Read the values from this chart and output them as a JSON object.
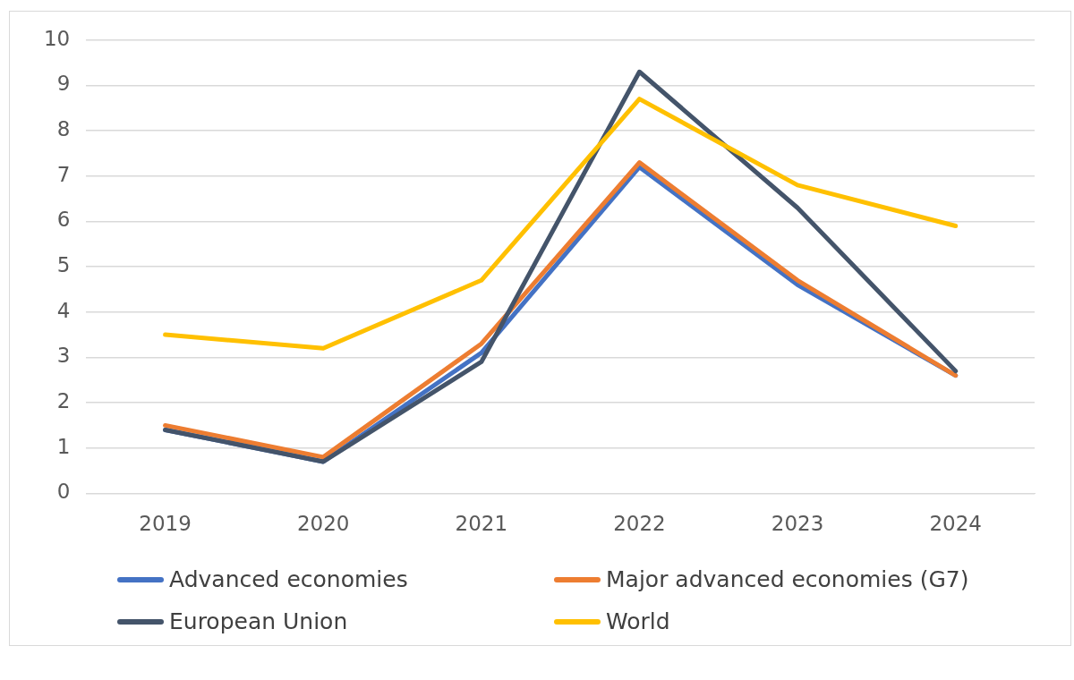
{
  "chart_data": {
    "type": "line",
    "categories": [
      "2019",
      "2020",
      "2021",
      "2022",
      "2023",
      "2024"
    ],
    "series": [
      {
        "name": "Advanced economies",
        "color": "#4472c4",
        "values": [
          1.4,
          0.7,
          3.1,
          7.2,
          4.6,
          2.6
        ]
      },
      {
        "name": "Major advanced economies (G7)",
        "color": "#ed7d31",
        "values": [
          1.5,
          0.8,
          3.3,
          7.3,
          4.7,
          2.6
        ]
      },
      {
        "name": "European Union",
        "color": "#44546a",
        "values": [
          1.4,
          0.7,
          2.9,
          9.3,
          6.3,
          2.7
        ]
      },
      {
        "name": "World",
        "color": "#ffc000",
        "values": [
          3.5,
          3.2,
          4.7,
          8.7,
          6.8,
          5.9
        ]
      }
    ],
    "ylim": [
      0,
      10
    ],
    "yticks": [
      0,
      1,
      2,
      3,
      4,
      5,
      6,
      7,
      8,
      9,
      10
    ],
    "grid": "y",
    "legend": "bottom",
    "marker": "none",
    "line_style": "solid"
  }
}
